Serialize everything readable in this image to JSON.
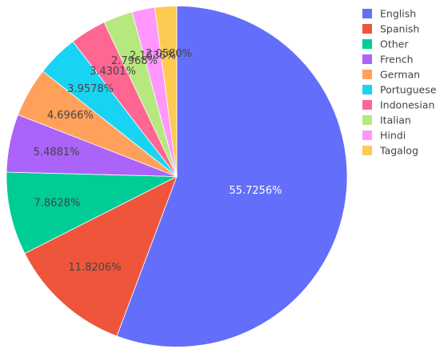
{
  "chart_data": {
    "type": "pie",
    "labels": [
      "English",
      "Spanish",
      "Other",
      "French",
      "German",
      "Portuguese",
      "Indonesian",
      "Italian",
      "Hindi",
      "Tagalog"
    ],
    "values": [
      55.7256,
      11.8206,
      7.8628,
      5.4881,
      4.6966,
      3.9578,
      3.4301,
      2.7968,
      2.1636,
      2.058
    ],
    "text_labels": [
      "55.7256%",
      "11.8206%",
      "7.8628%",
      "5.4881%",
      "4.6966%",
      "3.9578%",
      "3.4301%",
      "2.7968%",
      "2.1636%",
      "2.0580%"
    ],
    "colors": [
      "#636efa",
      "#ef553b",
      "#00cc96",
      "#ab63fa",
      "#ffa15a",
      "#19d3f3",
      "#ff6692",
      "#b6e880",
      "#ff97ff",
      "#fecb52"
    ],
    "direction": "clockwise",
    "start": "12 o'clock",
    "legend_position": "top-right"
  }
}
